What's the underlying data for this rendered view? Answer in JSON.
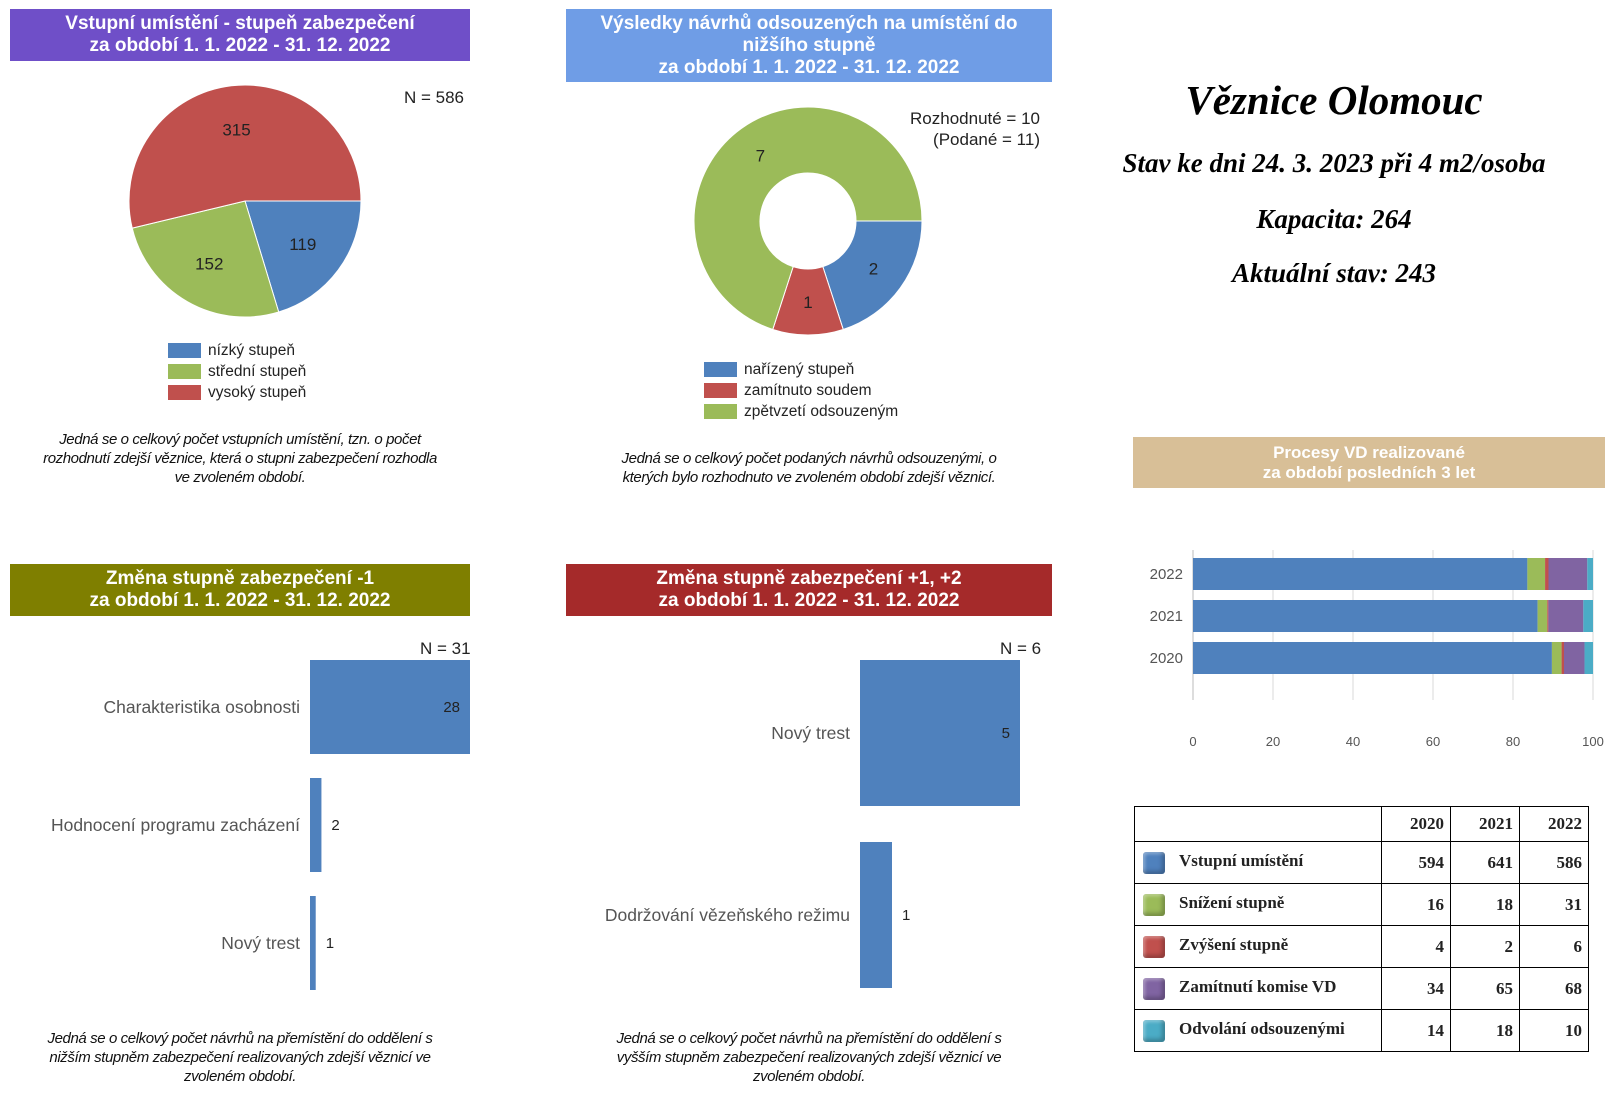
{
  "panels": {
    "p1": {
      "title_line1": "Vstupní umístění - stupeň zabezpečení",
      "title_line2": "za období 1. 1. 2022 - 31. 12. 2022",
      "bg": "#6f4fc8",
      "n_label": "N = 586",
      "legend": [
        "nízký stupeň",
        "střední stupeň",
        "vysoký stupeň"
      ],
      "note_line1": "Jedná se o celkový počet vstupních umístění, tzn. o počet",
      "note_line2": "rozhodnutí zdejší věznice, která o stupni zabezpečení rozhodla",
      "note_line3": "ve zvoleném období."
    },
    "p2": {
      "title_line1": "Výsledky návrhů odsouzených na umístění do",
      "title_line2": "nižšího stupně",
      "title_line3": "za období 1. 1. 2022 - 31. 12. 2022",
      "bg": "#6f9de6",
      "n_label_line1": "Rozhodnuté = 10",
      "n_label_line2": "(Podané = 11)",
      "legend": [
        "nařízený stupeň",
        "zamítnuto soudem",
        "zpětvzetí odsouzeným"
      ],
      "note_line1": "Jedná se o celkový počet podaných návrhů odsouzenými, o",
      "note_line2": "kterých bylo rozhodnuto ve zvoleném období zdejší věznicí."
    },
    "p3": {
      "title_line1": "Změna stupně zabezpečení -1",
      "title_line2": "za období 1. 1. 2022 - 31. 12. 2022",
      "bg": "#7f7f00",
      "n_label": "N = 31",
      "note_line1": "Jedná se o celkový počet návrhů na přemístění do oddělení s",
      "note_line2": "nižším stupněm zabezpečení realizovaných zdejší věznicí ve",
      "note_line3": "zvoleném období."
    },
    "p4": {
      "title_line1": "Změna stupně zabezpečení +1, +2",
      "title_line2": "za období 1. 1. 2022 - 31. 12. 2022",
      "bg": "#a52a2a",
      "n_label": "N = 6",
      "note_line1": "Jedná se o celkový počet návrhů na přemístění do oddělení s",
      "note_line2": "vyšším stupněm zabezpečení realizovaných zdejší věznicí ve",
      "note_line3": "zvoleném období."
    },
    "p5": {
      "title_line1": "Procesy VD realizované",
      "title_line2": "za období posledních 3 let",
      "bg": "#d8bf97"
    }
  },
  "info": {
    "prison": "Věznice Olomouc",
    "status_date": "Stav ke dni 24. 3. 2023 při 4 m2/osoba",
    "capacity": "Kapacita: 264",
    "current": "Aktuální stav: 243"
  },
  "colors": {
    "blue": "#4f81bd",
    "green": "#9bbb59",
    "red": "#c0504d",
    "purple": "#8064a2",
    "cyan": "#4bacc6"
  },
  "chart_data": [
    {
      "type": "pie",
      "id": "entry-placement",
      "title": "Vstupní umístění - stupeň zabezpečení za období 1. 1. 2022 - 31. 12. 2022",
      "labels": [
        "nízký stupeň",
        "střední stupeň",
        "vysoký stupeň"
      ],
      "values": [
        119,
        152,
        315
      ],
      "colors": [
        "#4f81bd",
        "#9bbb59",
        "#c0504d"
      ],
      "legend_position": "bottom"
    },
    {
      "type": "pie",
      "id": "lower-degree-proposals",
      "donut": true,
      "title": "Výsledky návrhů odsouzených na umístění do nižšího stupně za období 1. 1. 2022 - 31. 12. 2022",
      "labels": [
        "nařízený stupeň",
        "zamítnuto soudem",
        "zpětvzetí odsouzeným"
      ],
      "values": [
        2,
        1,
        7
      ],
      "colors": [
        "#4f81bd",
        "#c0504d",
        "#9bbb59"
      ],
      "legend_position": "bottom"
    },
    {
      "type": "bar",
      "orientation": "horizontal",
      "id": "change-minus-1",
      "title": "Změna stupně zabezpečení -1 za období 1. 1. 2022 - 31. 12. 2022",
      "categories": [
        "Charakteristika osobnosti",
        "Hodnocení programu zacházení",
        "Nový trest"
      ],
      "values": [
        28,
        2,
        1
      ],
      "xlim": [
        0,
        28
      ]
    },
    {
      "type": "bar",
      "orientation": "horizontal",
      "id": "change-plus",
      "title": "Změna stupně zabezpečení +1, +2 za období 1. 1. 2022 - 31. 12. 2022",
      "categories": [
        "Nový trest",
        "Dodržování vězeňského režimu"
      ],
      "values": [
        5,
        1
      ],
      "xlim": [
        0,
        5
      ]
    },
    {
      "type": "bar",
      "orientation": "horizontal",
      "stacked": "percent",
      "id": "vd-processes",
      "title": "Procesy VD realizované za období posledních 3 let",
      "categories": [
        "2022",
        "2021",
        "2020"
      ],
      "xlim": [
        0,
        100
      ],
      "xticks": [
        0,
        20,
        40,
        60,
        80,
        100
      ],
      "series": [
        {
          "name": "Vstupní umístění",
          "color": "#4f81bd",
          "values": [
            586,
            641,
            594
          ]
        },
        {
          "name": "Snížení stupně",
          "color": "#9bbb59",
          "values": [
            31,
            18,
            16
          ]
        },
        {
          "name": "Zvýšení stupně",
          "color": "#c0504d",
          "values": [
            6,
            2,
            4
          ]
        },
        {
          "name": "Zamítnutí komise VD",
          "color": "#8064a2",
          "values": [
            68,
            65,
            34
          ]
        },
        {
          "name": "Odvolání odsouzenými",
          "color": "#4bacc6",
          "values": [
            10,
            18,
            14
          ]
        }
      ]
    },
    {
      "type": "table",
      "id": "vd-table",
      "columns": [
        "",
        "2020",
        "2021",
        "2022"
      ],
      "rows": [
        {
          "label": "Vstupní umístění",
          "color": "#4f81bd",
          "values": [
            "594",
            "641",
            "586"
          ]
        },
        {
          "label": "Snížení stupně",
          "color": "#9bbb59",
          "values": [
            "16",
            "18",
            "31"
          ]
        },
        {
          "label": "Zvýšení stupně",
          "color": "#c0504d",
          "values": [
            "4",
            "2",
            "6"
          ]
        },
        {
          "label": "Zamítnutí komise VD",
          "color": "#8064a2",
          "values": [
            "34",
            "65",
            "68"
          ]
        },
        {
          "label": "Odvolání odsouzenými",
          "color": "#4bacc6",
          "values": [
            "14",
            "18",
            "10"
          ]
        }
      ]
    }
  ]
}
